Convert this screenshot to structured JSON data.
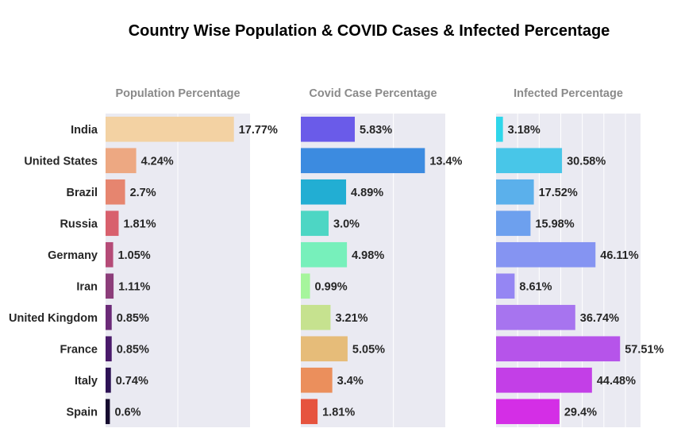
{
  "chart_data": {
    "type": "bar",
    "orientation": "horizontal",
    "title": "Country Wise Population & COVID Cases & Infected Percentage",
    "categories": [
      "India",
      "United States",
      "Brazil",
      "Russia",
      "Germany",
      "Iran",
      "United Kingdom",
      "France",
      "Italy",
      "Spain"
    ],
    "grid": true,
    "panels": [
      {
        "title": "Population Percentage",
        "xlim": [
          0,
          20
        ],
        "values": [
          17.77,
          4.24,
          2.7,
          1.81,
          1.05,
          1.11,
          0.85,
          0.85,
          0.74,
          0.6
        ],
        "labels": [
          "17.77%",
          "4.24%",
          "2.7%",
          "1.81%",
          "1.05%",
          "1.11%",
          "0.85%",
          "0.85%",
          "0.74%",
          "0.6%"
        ],
        "colors": [
          "#f3d2a3",
          "#eda882",
          "#e6856f",
          "#d8606d",
          "#b54b77",
          "#8c3d7a",
          "#6b2a78",
          "#4a1a6b",
          "#2d1255",
          "#160d2f"
        ]
      },
      {
        "title": "Covid Case Percentage",
        "xlim": [
          0,
          15.6
        ],
        "values": [
          5.83,
          13.4,
          4.89,
          3.0,
          4.98,
          0.99,
          3.21,
          5.05,
          3.4,
          1.81
        ],
        "labels": [
          "5.83%",
          "13.4%",
          "4.89%",
          "3.0%",
          "4.98%",
          "0.99%",
          "3.21%",
          "5.05%",
          "3.4%",
          "1.81%"
        ],
        "colors": [
          "#6a5be9",
          "#3c8be0",
          "#22aed3",
          "#4dd6c4",
          "#77f0bb",
          "#a6f59c",
          "#c6e28f",
          "#e6bc79",
          "#eb8f5c",
          "#e6533e"
        ]
      },
      {
        "title": "Infected Percentage",
        "xlim": [
          0,
          67
        ],
        "values": [
          3.18,
          30.58,
          17.52,
          15.98,
          46.11,
          8.61,
          36.74,
          57.51,
          44.48,
          29.4
        ],
        "labels": [
          "3.18%",
          "30.58%",
          "17.52%",
          "15.98%",
          "46.11%",
          "8.61%",
          "36.74%",
          "57.51%",
          "44.48%",
          "29.4%"
        ],
        "colors": [
          "#2fd6ea",
          "#48c6e8",
          "#5bb0eb",
          "#6da0ee",
          "#8594f2",
          "#9586f3",
          "#a774ef",
          "#b654ea",
          "#c33fe7",
          "#d42ee6"
        ]
      }
    ]
  }
}
